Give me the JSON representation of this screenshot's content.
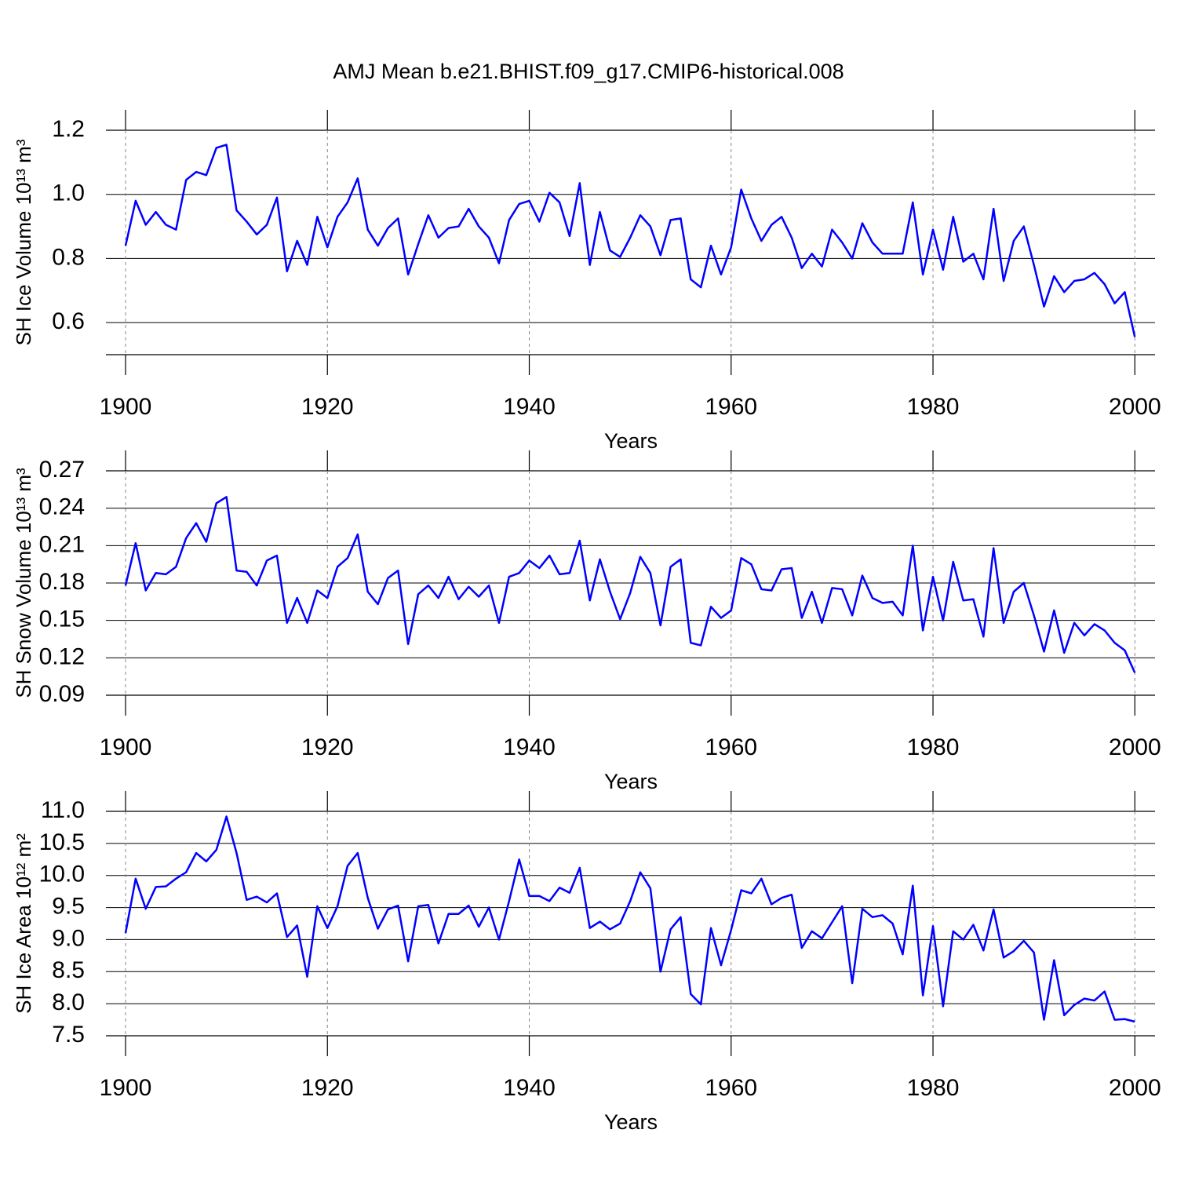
{
  "chart_data": [
    {
      "type": "line",
      "title": "AMJ Mean b.e21.BHIST.f09_g17.CMIP6-historical.008",
      "ylabel": "SH Ice Volume 10¹³ m³",
      "xlabel": "Years",
      "color": "#0000ff",
      "grid": true,
      "xlim": [
        1900,
        2002
      ],
      "xticks": [
        1900,
        1920,
        1940,
        1960,
        1980,
        2000
      ],
      "ylim": [
        0.5,
        1.2
      ],
      "yticks": [
        0.6,
        0.8,
        {
          "value": 1,
          "label": "1.0"
        },
        1.2
      ],
      "x": [
        1900,
        1901,
        1902,
        1903,
        1904,
        1905,
        1906,
        1907,
        1908,
        1909,
        1910,
        1911,
        1912,
        1913,
        1914,
        1915,
        1916,
        1917,
        1918,
        1919,
        1920,
        1921,
        1922,
        1923,
        1924,
        1925,
        1926,
        1927,
        1928,
        1929,
        1930,
        1931,
        1932,
        1933,
        1934,
        1935,
        1936,
        1937,
        1938,
        1939,
        1940,
        1941,
        1942,
        1943,
        1944,
        1945,
        1946,
        1947,
        1948,
        1949,
        1950,
        1951,
        1952,
        1953,
        1954,
        1955,
        1956,
        1957,
        1958,
        1959,
        1960,
        1961,
        1962,
        1963,
        1964,
        1965,
        1966,
        1967,
        1968,
        1969,
        1970,
        1971,
        1972,
        1973,
        1974,
        1975,
        1976,
        1977,
        1978,
        1979,
        1980,
        1981,
        1982,
        1983,
        1984,
        1985,
        1986,
        1987,
        1988,
        1989,
        1990,
        1991,
        1992,
        1993,
        1994,
        1995,
        1996,
        1997,
        1998,
        1999,
        2000
      ],
      "values": [
        0.84,
        0.98,
        0.905,
        0.945,
        0.905,
        0.89,
        1.045,
        1.07,
        1.06,
        1.145,
        1.155,
        0.95,
        0.915,
        0.875,
        0.905,
        0.99,
        0.76,
        0.855,
        0.78,
        0.93,
        0.835,
        0.93,
        0.975,
        1.05,
        0.89,
        0.84,
        0.895,
        0.925,
        0.75,
        0.845,
        0.935,
        0.865,
        0.895,
        0.9,
        0.955,
        0.9,
        0.865,
        0.785,
        0.92,
        0.97,
        0.98,
        0.915,
        1.005,
        0.975,
        0.87,
        1.035,
        0.78,
        0.945,
        0.825,
        0.805,
        0.865,
        0.935,
        0.9,
        0.81,
        0.92,
        0.925,
        0.735,
        0.71,
        0.84,
        0.75,
        0.835,
        1.015,
        0.925,
        0.855,
        0.905,
        0.93,
        0.865,
        0.77,
        0.815,
        0.775,
        0.89,
        0.85,
        0.8,
        0.91,
        0.85,
        0.815,
        0.815,
        0.815,
        0.975,
        0.75,
        0.89,
        0.765,
        0.93,
        0.79,
        0.815,
        0.735,
        0.955,
        0.73,
        0.855,
        0.9,
        0.78,
        0.65,
        0.745,
        0.695,
        0.73,
        0.735,
        0.755,
        0.72,
        0.66,
        0.695,
        0.555
      ]
    },
    {
      "type": "line",
      "ylabel": "SH Snow Volume 10¹³ m³",
      "xlabel": "Years",
      "color": "#0000ff",
      "grid": true,
      "xlim": [
        1900,
        2002
      ],
      "xticks": [
        1900,
        1920,
        1940,
        1960,
        1980,
        2000
      ],
      "ylim": [
        0.09,
        0.27
      ],
      "yticks": [
        0.09,
        0.12,
        0.15,
        0.18,
        0.21,
        0.24,
        0.27
      ],
      "x": [
        1900,
        1901,
        1902,
        1903,
        1904,
        1905,
        1906,
        1907,
        1908,
        1909,
        1910,
        1911,
        1912,
        1913,
        1914,
        1915,
        1916,
        1917,
        1918,
        1919,
        1920,
        1921,
        1922,
        1923,
        1924,
        1925,
        1926,
        1927,
        1928,
        1929,
        1930,
        1931,
        1932,
        1933,
        1934,
        1935,
        1936,
        1937,
        1938,
        1939,
        1940,
        1941,
        1942,
        1943,
        1944,
        1945,
        1946,
        1947,
        1948,
        1949,
        1950,
        1951,
        1952,
        1953,
        1954,
        1955,
        1956,
        1957,
        1958,
        1959,
        1960,
        1961,
        1962,
        1963,
        1964,
        1965,
        1966,
        1967,
        1968,
        1969,
        1970,
        1971,
        1972,
        1973,
        1974,
        1975,
        1976,
        1977,
        1978,
        1979,
        1980,
        1981,
        1982,
        1983,
        1984,
        1985,
        1986,
        1987,
        1988,
        1989,
        1990,
        1991,
        1992,
        1993,
        1994,
        1995,
        1996,
        1997,
        1998,
        1999,
        2000
      ],
      "values": [
        0.178,
        0.212,
        0.174,
        0.188,
        0.187,
        0.193,
        0.216,
        0.228,
        0.213,
        0.244,
        0.249,
        0.19,
        0.189,
        0.178,
        0.198,
        0.202,
        0.148,
        0.168,
        0.148,
        0.174,
        0.168,
        0.193,
        0.2,
        0.219,
        0.173,
        0.163,
        0.184,
        0.19,
        0.131,
        0.171,
        0.178,
        0.168,
        0.185,
        0.167,
        0.177,
        0.169,
        0.178,
        0.148,
        0.185,
        0.188,
        0.198,
        0.192,
        0.202,
        0.187,
        0.188,
        0.214,
        0.166,
        0.199,
        0.173,
        0.151,
        0.172,
        0.201,
        0.188,
        0.146,
        0.193,
        0.199,
        0.132,
        0.13,
        0.161,
        0.152,
        0.158,
        0.2,
        0.195,
        0.175,
        0.174,
        0.191,
        0.192,
        0.152,
        0.173,
        0.148,
        0.176,
        0.175,
        0.154,
        0.186,
        0.168,
        0.164,
        0.165,
        0.154,
        0.21,
        0.142,
        0.185,
        0.15,
        0.197,
        0.166,
        0.167,
        0.137,
        0.208,
        0.148,
        0.173,
        0.18,
        0.154,
        0.125,
        0.158,
        0.124,
        0.148,
        0.138,
        0.147,
        0.142,
        0.132,
        0.126,
        0.108
      ]
    },
    {
      "type": "line",
      "ylabel": "SH Ice Area 10¹² m²",
      "xlabel": "Years",
      "color": "#0000ff",
      "grid": true,
      "xlim": [
        1900,
        2002
      ],
      "xticks": [
        1900,
        1920,
        1940,
        1960,
        1980,
        2000
      ],
      "ylim": [
        7.5,
        11
      ],
      "yticks": [
        7.5,
        {
          "value": 8,
          "label": "8.0"
        },
        8.5,
        {
          "value": 9,
          "label": "9.0"
        },
        9.5,
        {
          "value": 10,
          "label": "10.0"
        },
        10.5,
        {
          "value": 11,
          "label": "11.0"
        }
      ],
      "x": [
        1900,
        1901,
        1902,
        1903,
        1904,
        1905,
        1906,
        1907,
        1908,
        1909,
        1910,
        1911,
        1912,
        1913,
        1914,
        1915,
        1916,
        1917,
        1918,
        1919,
        1920,
        1921,
        1922,
        1923,
        1924,
        1925,
        1926,
        1927,
        1928,
        1929,
        1930,
        1931,
        1932,
        1933,
        1934,
        1935,
        1936,
        1937,
        1938,
        1939,
        1940,
        1941,
        1942,
        1943,
        1944,
        1945,
        1946,
        1947,
        1948,
        1949,
        1950,
        1951,
        1952,
        1953,
        1954,
        1955,
        1956,
        1957,
        1958,
        1959,
        1960,
        1961,
        1962,
        1963,
        1964,
        1965,
        1966,
        1967,
        1968,
        1969,
        1970,
        1971,
        1972,
        1973,
        1974,
        1975,
        1976,
        1977,
        1978,
        1979,
        1980,
        1981,
        1982,
        1983,
        1984,
        1985,
        1986,
        1987,
        1988,
        1989,
        1990,
        1991,
        1992,
        1993,
        1994,
        1995,
        1996,
        1997,
        1998,
        1999,
        2000
      ],
      "values": [
        9.1,
        9.95,
        9.48,
        9.82,
        9.83,
        9.95,
        10.05,
        10.35,
        10.22,
        10.4,
        10.92,
        10.35,
        9.62,
        9.67,
        9.58,
        9.72,
        9.04,
        9.22,
        8.42,
        9.52,
        9.18,
        9.52,
        10.15,
        10.35,
        9.65,
        9.17,
        9.47,
        9.53,
        8.66,
        9.52,
        9.54,
        8.94,
        9.4,
        9.4,
        9.53,
        9.2,
        9.5,
        9.0,
        9.6,
        10.25,
        9.68,
        9.68,
        9.6,
        9.81,
        9.73,
        10.12,
        9.18,
        9.28,
        9.16,
        9.25,
        9.6,
        10.05,
        9.8,
        8.5,
        9.16,
        9.35,
        8.15,
        7.99,
        9.18,
        8.6,
        9.15,
        9.77,
        9.72,
        9.95,
        9.55,
        9.65,
        9.7,
        8.87,
        9.13,
        9.02,
        9.27,
        9.52,
        8.32,
        9.48,
        9.35,
        9.38,
        9.25,
        8.77,
        9.84,
        8.13,
        9.21,
        7.96,
        9.13,
        9.0,
        9.23,
        8.83,
        9.47,
        8.72,
        8.82,
        8.98,
        8.8,
        7.75,
        8.68,
        7.82,
        7.98,
        8.08,
        8.05,
        8.19,
        7.75,
        7.76,
        7.72
      ]
    }
  ]
}
